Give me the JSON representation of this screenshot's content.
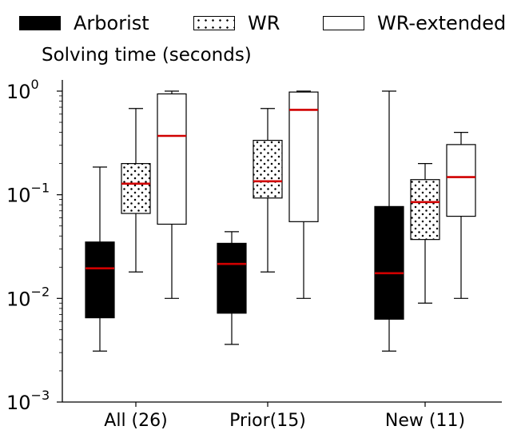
{
  "chart_data": {
    "type": "box",
    "subtitle": "Solving time (seconds)",
    "yscale": "log",
    "ylim": [
      0.001,
      1.3
    ],
    "yticks": [
      {
        "value": 1,
        "base": "10",
        "exp": "0"
      },
      {
        "value": 0.1,
        "base": "10",
        "exp": "−1"
      },
      {
        "value": 0.01,
        "base": "10",
        "exp": "−2"
      },
      {
        "value": 0.001,
        "base": "10",
        "exp": "−3"
      }
    ],
    "categories": [
      "All (26)",
      "Prior(15)",
      "New (11)"
    ],
    "legend_position": "top",
    "grid": false,
    "median_color": "#d00000",
    "series": [
      {
        "name": "Arborist",
        "fill": "solid-black",
        "boxes": [
          {
            "whisker_low": 0.0031,
            "q1": 0.0065,
            "median": 0.0195,
            "q3": 0.035,
            "whisker_high": 0.185
          },
          {
            "whisker_low": 0.0036,
            "q1": 0.0072,
            "median": 0.0215,
            "q3": 0.034,
            "whisker_high": 0.044
          },
          {
            "whisker_low": 0.0031,
            "q1": 0.0063,
            "median": 0.0175,
            "q3": 0.077,
            "whisker_high": 1.0
          }
        ]
      },
      {
        "name": "WR",
        "fill": "dots",
        "boxes": [
          {
            "whisker_low": 0.018,
            "q1": 0.066,
            "median": 0.128,
            "q3": 0.2,
            "whisker_high": 0.68
          },
          {
            "whisker_low": 0.018,
            "q1": 0.093,
            "median": 0.135,
            "q3": 0.335,
            "whisker_high": 0.68
          },
          {
            "whisker_low": 0.009,
            "q1": 0.037,
            "median": 0.085,
            "q3": 0.14,
            "whisker_high": 0.2
          }
        ]
      },
      {
        "name": "WR-extended",
        "fill": "white",
        "boxes": [
          {
            "whisker_low": 0.01,
            "q1": 0.052,
            "median": 0.37,
            "q3": 0.94,
            "whisker_high": 1.0
          },
          {
            "whisker_low": 0.01,
            "q1": 0.055,
            "median": 0.66,
            "q3": 0.98,
            "whisker_high": 1.0
          },
          {
            "whisker_low": 0.01,
            "q1": 0.062,
            "median": 0.148,
            "q3": 0.305,
            "whisker_high": 0.4
          }
        ]
      }
    ]
  }
}
